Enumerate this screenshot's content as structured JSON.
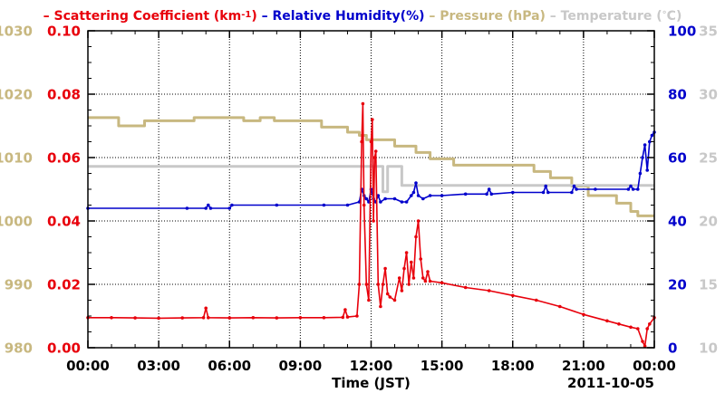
{
  "chart_data": {
    "type": "line",
    "xlabel": "Time (JST)",
    "date_label": "2011-10-05",
    "x_ticks": [
      "00:00",
      "03:00",
      "06:00",
      "09:00",
      "12:00",
      "15:00",
      "18:00",
      "21:00",
      "00:00"
    ],
    "xlim_hours": [
      0,
      24
    ],
    "grid": true,
    "legend": {
      "placement": "top",
      "entries": [
        {
          "prefix": "– ",
          "text": "Scattering Coefficient (km",
          "sup": "-1",
          "suffix": ")",
          "color": "#e8000b"
        },
        {
          "prefix": " – ",
          "text": "Relative Humidity(%)",
          "color": "#0000cc"
        },
        {
          "prefix": " – ",
          "text": "Pressure (hPa)",
          "color": "#c8b880"
        },
        {
          "prefix": " – ",
          "text": "Temperature (",
          "sup": "°",
          "suffix": "C)",
          "color": "#c8c8c8"
        }
      ]
    },
    "axes": {
      "pressure": {
        "side": "left-outer",
        "range": [
          980,
          1030
        ],
        "ticks": [
          "980",
          "990",
          "1000",
          "1010",
          "1020",
          "1030"
        ],
        "color": "#c8b880"
      },
      "scattering": {
        "side": "left-inner",
        "range": [
          0,
          0.1
        ],
        "ticks": [
          "0.00",
          "0.02",
          "0.04",
          "0.06",
          "0.08",
          "0.10"
        ],
        "color": "#e8000b"
      },
      "humidity": {
        "side": "right-inner",
        "range": [
          0,
          100
        ],
        "ticks": [
          "0",
          "20",
          "40",
          "60",
          "80",
          "100"
        ],
        "color": "#0000cc"
      },
      "temperature": {
        "side": "right-outer",
        "range": [
          10,
          35
        ],
        "ticks": [
          "10",
          "15",
          "20",
          "25",
          "30",
          "35"
        ],
        "color": "#c8c8c8"
      }
    },
    "series": [
      {
        "name": "Pressure (hPa)",
        "axis": "pressure",
        "color": "#c8b880",
        "step": true,
        "points": [
          [
            0,
            1016.3
          ],
          [
            1.3,
            1016.3
          ],
          [
            1.3,
            1015
          ],
          [
            2.4,
            1015
          ],
          [
            2.4,
            1015.8
          ],
          [
            4.5,
            1015.8
          ],
          [
            4.5,
            1016.3
          ],
          [
            6.6,
            1016.3
          ],
          [
            6.6,
            1015.8
          ],
          [
            7.3,
            1015.8
          ],
          [
            7.3,
            1016.3
          ],
          [
            7.9,
            1016.3
          ],
          [
            7.9,
            1015.8
          ],
          [
            9.9,
            1015.8
          ],
          [
            9.9,
            1014.8
          ],
          [
            11.0,
            1014.8
          ],
          [
            11.0,
            1014
          ],
          [
            11.5,
            1014
          ],
          [
            11.5,
            1013.5
          ],
          [
            11.8,
            1013.5
          ],
          [
            11.8,
            1012.8
          ],
          [
            13.0,
            1012.8
          ],
          [
            13.0,
            1011.8
          ],
          [
            13.9,
            1011.8
          ],
          [
            13.9,
            1010.8
          ],
          [
            14.5,
            1010.8
          ],
          [
            14.5,
            1009.8
          ],
          [
            15.5,
            1009.8
          ],
          [
            15.5,
            1008.8
          ],
          [
            18.9,
            1008.8
          ],
          [
            18.9,
            1007.8
          ],
          [
            19.6,
            1007.8
          ],
          [
            19.6,
            1006.8
          ],
          [
            20.5,
            1006.8
          ],
          [
            20.5,
            1005.5
          ],
          [
            21.2,
            1005.5
          ],
          [
            21.2,
            1004
          ],
          [
            22.4,
            1004
          ],
          [
            22.4,
            1002.8
          ],
          [
            23.0,
            1002.8
          ],
          [
            23.0,
            1001.5
          ],
          [
            23.3,
            1001.5
          ],
          [
            23.3,
            1000.8
          ],
          [
            24,
            1000.8
          ]
        ]
      },
      {
        "name": "Temperature (°C)",
        "axis": "temperature",
        "color": "#c8c8c8",
        "step": true,
        "points": [
          [
            0,
            24.3
          ],
          [
            12.5,
            24.3
          ],
          [
            12.5,
            22.3
          ],
          [
            12.7,
            22.3
          ],
          [
            12.7,
            24.3
          ],
          [
            13.3,
            24.3
          ],
          [
            13.3,
            22.8
          ],
          [
            24,
            22.8
          ]
        ]
      },
      {
        "name": "Relative Humidity(%)",
        "axis": "humidity",
        "color": "#0000cc",
        "markers": true,
        "points": [
          [
            0,
            44
          ],
          [
            4.2,
            44
          ],
          [
            5.0,
            44
          ],
          [
            5.1,
            45
          ],
          [
            5.2,
            44
          ],
          [
            6.0,
            44
          ],
          [
            6.1,
            45
          ],
          [
            8.0,
            45
          ],
          [
            10.0,
            45
          ],
          [
            11.0,
            45
          ],
          [
            11.5,
            46
          ],
          [
            11.6,
            50
          ],
          [
            11.7,
            48
          ],
          [
            11.8,
            47
          ],
          [
            11.9,
            46
          ],
          [
            12.0,
            50
          ],
          [
            12.1,
            47
          ],
          [
            12.2,
            46
          ],
          [
            12.3,
            48
          ],
          [
            12.4,
            46
          ],
          [
            12.6,
            47
          ],
          [
            13.0,
            47
          ],
          [
            13.3,
            46
          ],
          [
            13.5,
            46
          ],
          [
            13.7,
            48
          ],
          [
            13.8,
            49
          ],
          [
            13.9,
            52
          ],
          [
            14.0,
            48
          ],
          [
            14.2,
            47
          ],
          [
            14.5,
            48
          ],
          [
            15.0,
            48
          ],
          [
            16.0,
            48.5
          ],
          [
            16.9,
            48.5
          ],
          [
            17.0,
            50
          ],
          [
            17.1,
            48.5
          ],
          [
            18.0,
            49
          ],
          [
            19.3,
            49
          ],
          [
            19.4,
            51
          ],
          [
            19.5,
            49
          ],
          [
            20.5,
            49
          ],
          [
            20.6,
            51
          ],
          [
            20.7,
            50
          ],
          [
            21.5,
            50
          ],
          [
            22.9,
            50
          ],
          [
            23.0,
            51
          ],
          [
            23.1,
            50
          ],
          [
            23.3,
            50
          ],
          [
            23.4,
            55
          ],
          [
            23.5,
            60
          ],
          [
            23.6,
            64
          ],
          [
            23.7,
            56
          ],
          [
            23.8,
            65
          ],
          [
            23.9,
            67
          ],
          [
            24,
            68
          ]
        ]
      },
      {
        "name": "Scattering Coefficient (km-1)",
        "axis": "scattering",
        "color": "#e8000b",
        "markers": true,
        "points": [
          [
            0,
            0.0095
          ],
          [
            1.0,
            0.0095
          ],
          [
            2.0,
            0.0094
          ],
          [
            3.0,
            0.0093
          ],
          [
            4.0,
            0.0094
          ],
          [
            4.9,
            0.0095
          ],
          [
            5.0,
            0.0125
          ],
          [
            5.1,
            0.0095
          ],
          [
            6.0,
            0.0094
          ],
          [
            7.0,
            0.0095
          ],
          [
            8.0,
            0.0094
          ],
          [
            9.0,
            0.0095
          ],
          [
            10.0,
            0.0095
          ],
          [
            10.8,
            0.0096
          ],
          [
            10.9,
            0.012
          ],
          [
            11.0,
            0.0097
          ],
          [
            11.4,
            0.01
          ],
          [
            11.5,
            0.02
          ],
          [
            11.6,
            0.065
          ],
          [
            11.65,
            0.077
          ],
          [
            11.7,
            0.045
          ],
          [
            11.8,
            0.02
          ],
          [
            11.9,
            0.015
          ],
          [
            12.0,
            0.065
          ],
          [
            12.05,
            0.072
          ],
          [
            12.1,
            0.04
          ],
          [
            12.15,
            0.06
          ],
          [
            12.2,
            0.062
          ],
          [
            12.3,
            0.02
          ],
          [
            12.4,
            0.013
          ],
          [
            12.5,
            0.02
          ],
          [
            12.6,
            0.025
          ],
          [
            12.7,
            0.017
          ],
          [
            12.8,
            0.016
          ],
          [
            13.0,
            0.015
          ],
          [
            13.2,
            0.022
          ],
          [
            13.3,
            0.018
          ],
          [
            13.4,
            0.025
          ],
          [
            13.5,
            0.03
          ],
          [
            13.6,
            0.02
          ],
          [
            13.7,
            0.027
          ],
          [
            13.8,
            0.022
          ],
          [
            13.9,
            0.035
          ],
          [
            14.0,
            0.04
          ],
          [
            14.1,
            0.028
          ],
          [
            14.2,
            0.022
          ],
          [
            14.3,
            0.021
          ],
          [
            14.4,
            0.024
          ],
          [
            14.5,
            0.021
          ],
          [
            15.0,
            0.0205
          ],
          [
            16.0,
            0.019
          ],
          [
            17.0,
            0.018
          ],
          [
            18.0,
            0.0165
          ],
          [
            19.0,
            0.015
          ],
          [
            20.0,
            0.013
          ],
          [
            21.0,
            0.0105
          ],
          [
            22.0,
            0.0085
          ],
          [
            22.5,
            0.0075
          ],
          [
            23.0,
            0.0065
          ],
          [
            23.3,
            0.006
          ],
          [
            23.5,
            0.002
          ],
          [
            23.6,
            0.0005
          ],
          [
            23.7,
            0.006
          ],
          [
            23.8,
            0.0075
          ],
          [
            24,
            0.0095
          ]
        ]
      }
    ]
  }
}
